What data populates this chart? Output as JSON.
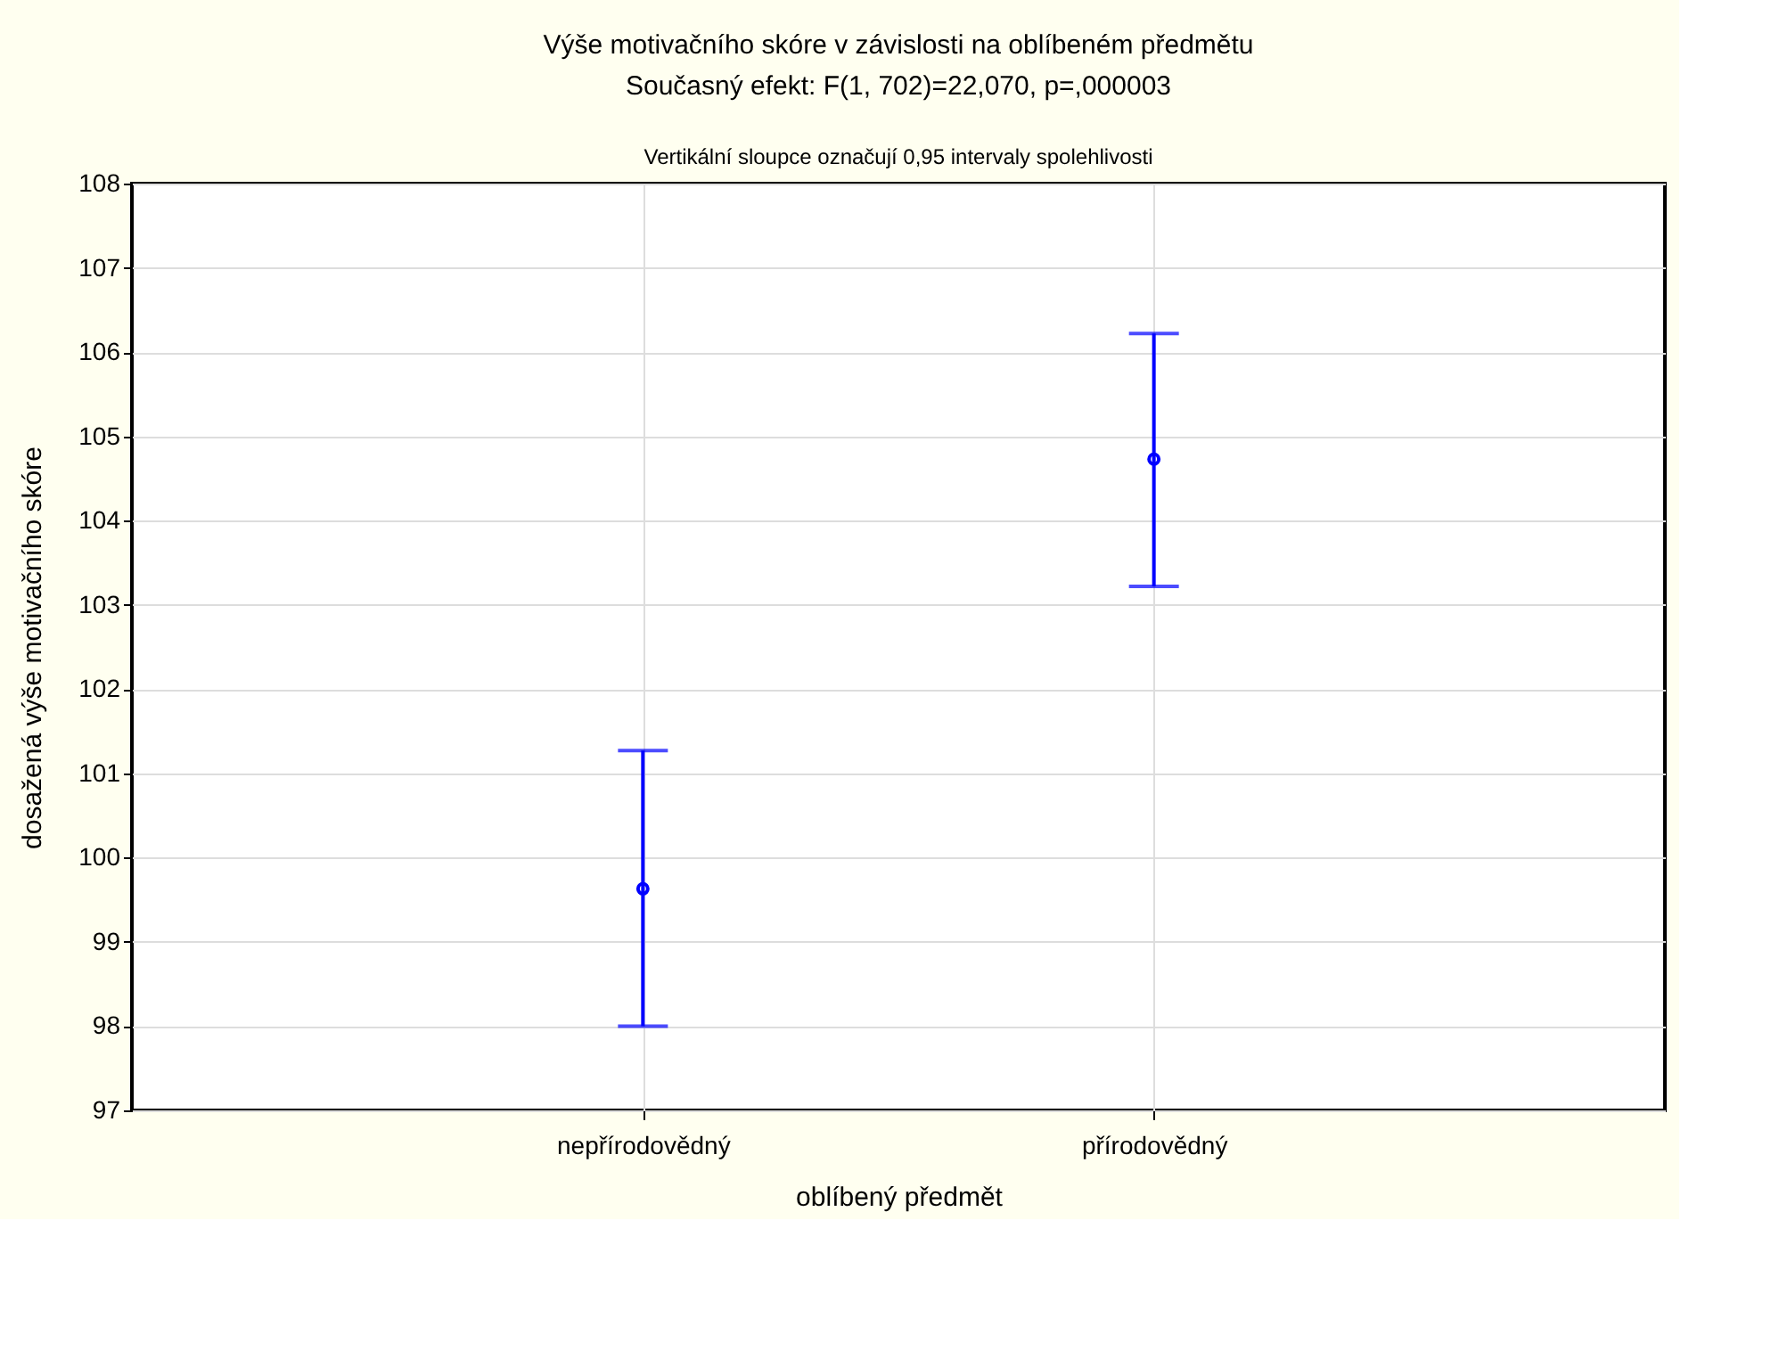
{
  "chart_data": {
    "type": "scatter",
    "title": "Výše motivačního skóre v závislosti na oblíbeném předmětu",
    "subtitle": "Současný efekt: F(1, 702)=22,070, p=,000003",
    "annotations": [
      "Vertikální sloupce označují 0,95 intervaly spolehlivosti"
    ],
    "xlabel": "oblíbený předmět",
    "ylabel": "dosažená výše motivačního skóre",
    "categories": [
      "nepřírodovědný",
      "přírodovědný"
    ],
    "series": [
      {
        "color": "#0000ff",
        "values": [
          99.63,
          104.73
        ],
        "errors": [
          [
            98.0,
            101.27
          ],
          [
            103.22,
            106.22
          ]
        ]
      }
    ],
    "ylim": [
      97,
      108
    ],
    "yticks": [
      97,
      98,
      99,
      100,
      101,
      102,
      103,
      104,
      105,
      106,
      107,
      108
    ],
    "grid": true,
    "marker": "circle"
  }
}
